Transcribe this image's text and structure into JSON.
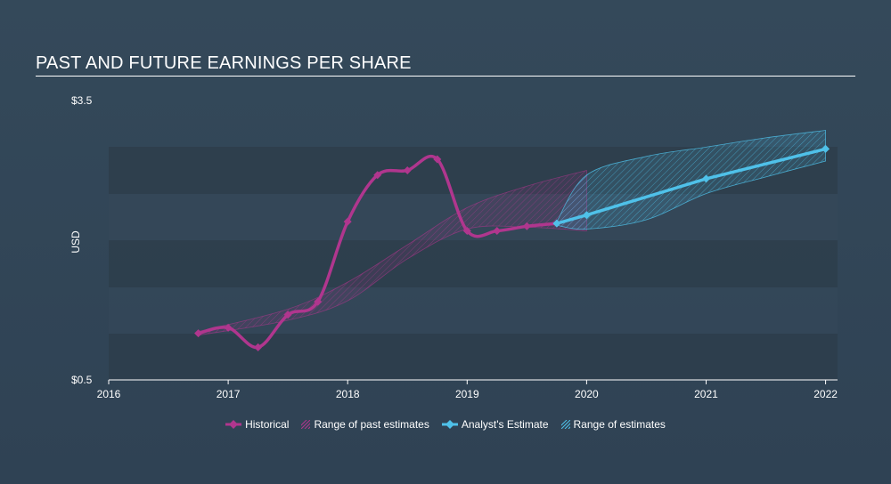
{
  "chart_data": {
    "type": "line",
    "title": "PAST AND FUTURE EARNINGS PER SHARE",
    "ylabel": "USD",
    "y_tick_labels": [
      "$3.5",
      "$0.5"
    ],
    "ylim": [
      0.5,
      3.5
    ],
    "xlim": [
      2016,
      2022.1
    ],
    "x_ticks": [
      2016,
      2017,
      2018,
      2019,
      2020,
      2021,
      2022
    ],
    "x_tick_labels": [
      "2016",
      "2017",
      "2018",
      "2019",
      "2020",
      "2021",
      "2022"
    ],
    "series": [
      {
        "name": "Historical",
        "color": "#b0368e",
        "points": [
          [
            2016.75,
            1.0
          ],
          [
            2017.0,
            1.06
          ],
          [
            2017.25,
            0.85
          ],
          [
            2017.5,
            1.2
          ],
          [
            2017.75,
            1.34
          ],
          [
            2018.0,
            2.2
          ],
          [
            2018.25,
            2.7
          ],
          [
            2018.5,
            2.75
          ],
          [
            2018.75,
            2.87
          ],
          [
            2019.0,
            2.1
          ],
          [
            2019.25,
            2.1
          ],
          [
            2019.5,
            2.15
          ],
          [
            2019.75,
            2.18
          ]
        ]
      },
      {
        "name": "Analyst's Estimate",
        "color": "#4fc1e9",
        "points": [
          [
            2019.75,
            2.18
          ],
          [
            2020.0,
            2.27
          ],
          [
            2021.0,
            2.66
          ],
          [
            2022.0,
            2.98
          ]
        ]
      }
    ],
    "past_range": {
      "name": "Range of past estimates",
      "color": "#b0368e",
      "upper": [
        [
          2016.75,
          1.02
        ],
        [
          2017.5,
          1.26
        ],
        [
          2018.0,
          1.55
        ],
        [
          2018.5,
          1.95
        ],
        [
          2019.0,
          2.35
        ],
        [
          2019.5,
          2.58
        ],
        [
          2020.0,
          2.75
        ]
      ],
      "lower": [
        [
          2016.75,
          0.98
        ],
        [
          2017.5,
          1.14
        ],
        [
          2018.0,
          1.35
        ],
        [
          2018.5,
          1.8
        ],
        [
          2019.0,
          2.12
        ],
        [
          2019.5,
          2.14
        ],
        [
          2020.0,
          2.1
        ]
      ]
    },
    "future_range": {
      "name": "Range of estimates",
      "color": "#4fc1e9",
      "upper": [
        [
          2019.75,
          2.2
        ],
        [
          2020.0,
          2.7
        ],
        [
          2020.5,
          2.9
        ],
        [
          2021.0,
          3.0
        ],
        [
          2021.5,
          3.1
        ],
        [
          2022.0,
          3.18
        ]
      ],
      "lower": [
        [
          2019.75,
          2.16
        ],
        [
          2020.0,
          2.12
        ],
        [
          2020.5,
          2.22
        ],
        [
          2021.0,
          2.5
        ],
        [
          2021.5,
          2.68
        ],
        [
          2022.0,
          2.85
        ]
      ]
    },
    "legend": [
      {
        "label": "Historical",
        "kind": "line-marker",
        "color": "#b0368e"
      },
      {
        "label": "Range of past estimates",
        "kind": "hatch",
        "color": "#b0368e"
      },
      {
        "label": "Analyst's Estimate",
        "kind": "line-marker",
        "color": "#4fc1e9"
      },
      {
        "label": "Range of estimates",
        "kind": "hatch",
        "color": "#4fc1e9"
      }
    ]
  }
}
